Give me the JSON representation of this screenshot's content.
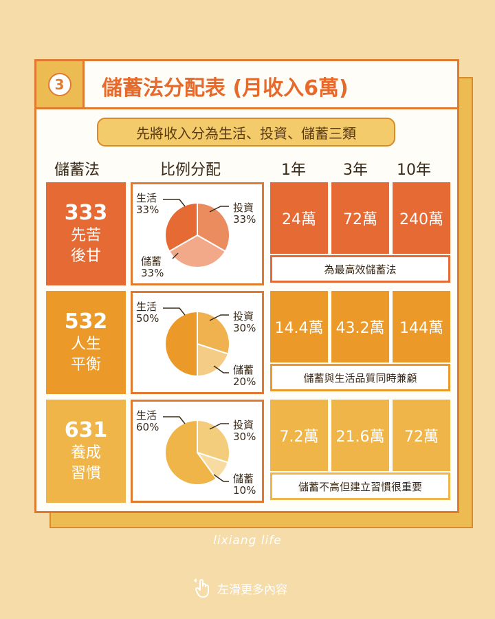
{
  "title": {
    "number": "3",
    "text": "儲蓄法分配表 (月收入6萬)"
  },
  "subtitle": "先將收入分為生活、投資、儲蓄三類",
  "headers": {
    "method": "儲蓄法",
    "ratio": "比例分配",
    "y1": "1年",
    "y3": "3年",
    "y10": "10年"
  },
  "rows": [
    {
      "code": "333",
      "name1": "先苦",
      "name2": "後甘",
      "pie": {
        "living": "生活",
        "living_pct": "33%",
        "invest": "投資",
        "invest_pct": "33%",
        "save": "儲蓄",
        "save_pct": "33%"
      },
      "shares": {
        "living": 33.3,
        "invest": 33.3,
        "save": 33.4
      },
      "y1": "24萬",
      "y3": "72萬",
      "y10": "240萬",
      "note": "為最高效儲蓄法"
    },
    {
      "code": "532",
      "name1": "人生",
      "name2": "平衡",
      "pie": {
        "living": "生活",
        "living_pct": "50%",
        "invest": "投資",
        "invest_pct": "30%",
        "save": "儲蓄",
        "save_pct": "20%"
      },
      "shares": {
        "living": 50,
        "invest": 30,
        "save": 20
      },
      "y1": "14.4萬",
      "y3": "43.2萬",
      "y10": "144萬",
      "note": "儲蓄與生活品質同時兼顧"
    },
    {
      "code": "631",
      "name1": "養成",
      "name2": "習慣",
      "pie": {
        "living": "生活",
        "living_pct": "60%",
        "invest": "投資",
        "invest_pct": "30%",
        "save": "儲蓄",
        "save_pct": "10%"
      },
      "shares": {
        "living": 60,
        "invest": 30,
        "save": 10
      },
      "y1": "7.2萬",
      "y3": "21.6萬",
      "y10": "72萬",
      "note": "儲蓄不高但建立習慣很重要"
    }
  ],
  "colors": {
    "row1": "#e56a33",
    "row2": "#eb9a2a",
    "row3": "#f0b548",
    "pie1": [
      "#e56a33",
      "#eb8c5e",
      "#f1a98a"
    ],
    "pie2": [
      "#eb9a2a",
      "#f0b24e",
      "#f5cc85"
    ],
    "pie3": [
      "#f0b548",
      "#f4cd7c",
      "#f7dba1"
    ]
  },
  "footer": {
    "brand": "lixiang life",
    "cta": "左滑更多內容",
    "cta_icon": "swipe-hand-icon"
  }
}
